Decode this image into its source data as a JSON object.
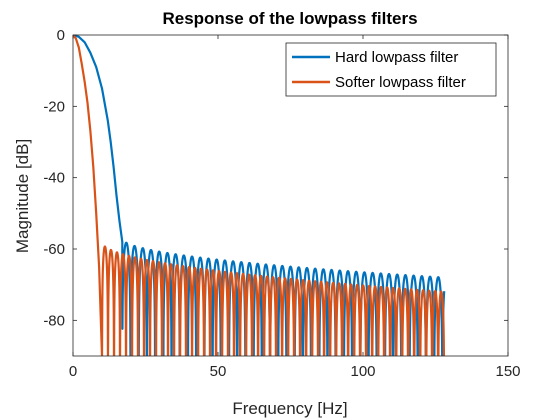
{
  "chart_data": {
    "type": "line",
    "title": "Response of the lowpass filters",
    "xlabel": "Frequency [Hz]",
    "ylabel": "Magnitude [dB]",
    "xlim": [
      0,
      150
    ],
    "ylim": [
      -90,
      0
    ],
    "xticks": [
      0,
      50,
      100,
      150
    ],
    "yticks": [
      0,
      -20,
      -40,
      -60,
      -80
    ],
    "grid": false,
    "legend_position": "top-right",
    "series": [
      {
        "name": "Hard lowpass filter",
        "color": "#0072BD",
        "main_lobe": [
          [
            0,
            0
          ],
          [
            2,
            -0.5
          ],
          [
            4,
            -2
          ],
          [
            6,
            -5
          ],
          [
            8,
            -9
          ],
          [
            10,
            -15
          ],
          [
            12,
            -24
          ],
          [
            13,
            -30
          ],
          [
            14,
            -37
          ],
          [
            15,
            -45
          ],
          [
            16,
            -52
          ],
          [
            17,
            -58
          ]
        ],
        "sidelobe_start": 17,
        "sidelobe_end": 128,
        "sidelobe_period": 2.83,
        "sidelobe_peak_start": -57,
        "sidelobe_peak_end": -68,
        "null_depth": -90
      },
      {
        "name": "Softer lowpass filter",
        "color": "#D95319",
        "main_lobe": [
          [
            0,
            0
          ],
          [
            1,
            -1
          ],
          [
            2,
            -3.5
          ],
          [
            3,
            -8
          ],
          [
            4,
            -13
          ],
          [
            5,
            -19
          ],
          [
            6,
            -27
          ],
          [
            7,
            -37
          ],
          [
            8,
            -50
          ],
          [
            9,
            -65
          ],
          [
            10,
            -90
          ]
        ],
        "sidelobe_start": 10,
        "sidelobe_end": 128,
        "sidelobe_period": 2.07,
        "sidelobe_peak_start": -58,
        "sidelobe_peak_end": -72,
        "null_depth": -90
      }
    ]
  }
}
